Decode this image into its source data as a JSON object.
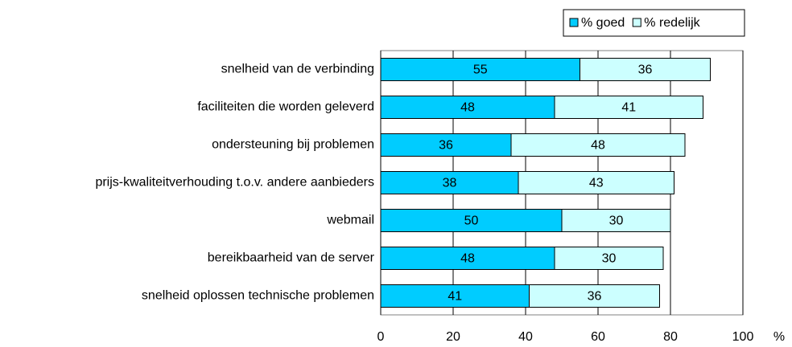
{
  "chart_data": {
    "type": "bar",
    "orientation": "horizontal",
    "stacked": true,
    "categories": [
      "snelheid van de verbinding",
      "faciliteiten die worden geleverd",
      "ondersteuning bij problemen",
      "prijs-kwaliteitverhouding t.o.v. andere aanbieders",
      "webmail",
      "bereikbaarheid van de server",
      "snelheid oplossen technische problemen"
    ],
    "series": [
      {
        "name": "% goed",
        "color": "#00ccff",
        "values": [
          55,
          48,
          36,
          38,
          50,
          48,
          41
        ]
      },
      {
        "name": "% redelijk",
        "color": "#ccffff",
        "values": [
          36,
          41,
          48,
          43,
          30,
          30,
          36
        ]
      }
    ],
    "xlabel": "%",
    "xlim": [
      0,
      100
    ],
    "xticks": [
      0,
      20,
      40,
      60,
      80,
      100
    ],
    "grid": true,
    "legend": "top-right"
  }
}
